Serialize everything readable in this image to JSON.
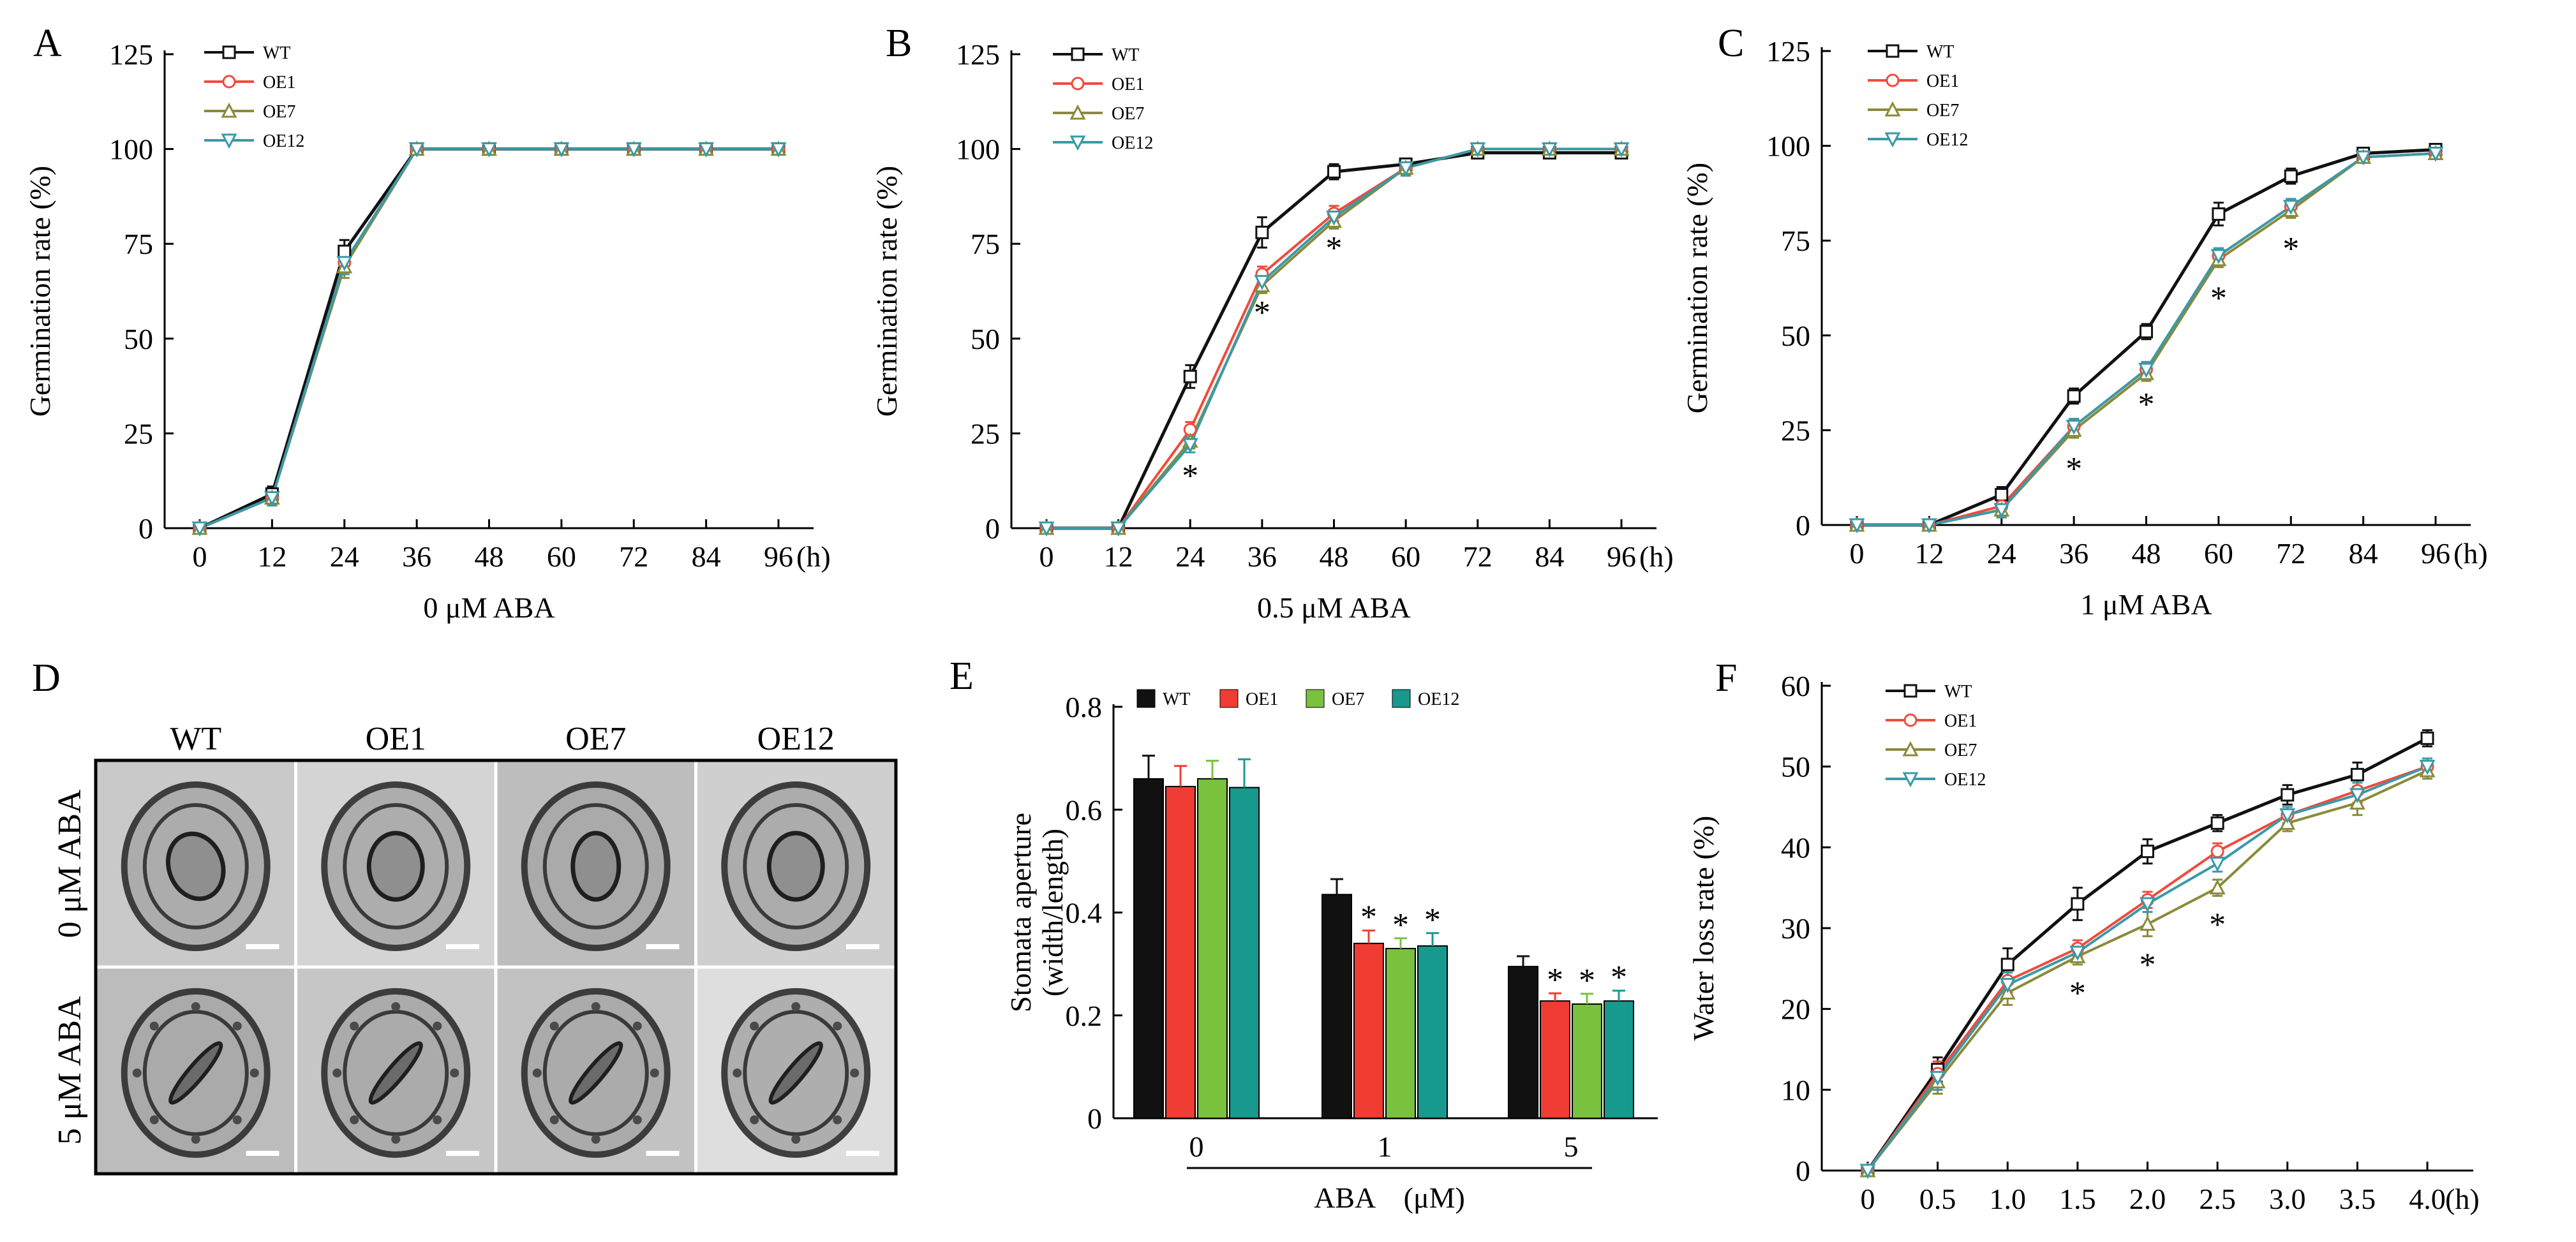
{
  "colors": {
    "WT": "#111111",
    "OE1": "#f24a3c",
    "OE7": "#8a8a3a",
    "OE12": "#3a9aa8",
    "bar_WT": "#111111",
    "bar_OE1": "#f03c32",
    "bar_OE7": "#7ac13e",
    "bar_OE12": "#18998d"
  },
  "figure_d": {
    "panel_letter": "D",
    "columns": [
      "WT",
      "OE1",
      "OE7",
      "OE12"
    ],
    "rows": [
      "0 μM ABA",
      "5 μM ABA"
    ]
  },
  "chart_data": [
    {
      "id": "A",
      "panel_letter": "A",
      "type": "line",
      "title": "",
      "xlabel": "0 μM ABA",
      "ylabel": "Germination rate (%)",
      "x": [
        0,
        12,
        24,
        36,
        48,
        60,
        72,
        84,
        96
      ],
      "xticks": [
        "0",
        "12",
        "24",
        "36",
        "48",
        "60",
        "72",
        "84",
        "96"
      ],
      "x_unit": "(h)",
      "yticks": [
        "0",
        "25",
        "50",
        "75",
        "100",
        "125"
      ],
      "ylim": [
        0,
        125
      ],
      "legend": [
        "WT",
        "OE1",
        "OE7",
        "OE12"
      ],
      "series": [
        {
          "name": "WT",
          "values": [
            0,
            9,
            73,
            100,
            100,
            100,
            100,
            100,
            100
          ],
          "err": [
            0,
            2,
            3,
            0,
            0,
            0,
            0,
            0,
            0
          ]
        },
        {
          "name": "OE1",
          "values": [
            0,
            8,
            70,
            100,
            100,
            100,
            100,
            100,
            100
          ],
          "err": [
            0,
            2,
            3,
            0,
            0,
            0,
            0,
            0,
            0
          ]
        },
        {
          "name": "OE7",
          "values": [
            0,
            8,
            69,
            100,
            100,
            100,
            100,
            100,
            100
          ],
          "err": [
            0,
            2,
            3,
            0,
            0,
            0,
            0,
            0,
            0
          ]
        },
        {
          "name": "OE12",
          "values": [
            0,
            8,
            70,
            100,
            100,
            100,
            100,
            100,
            100
          ],
          "err": [
            0,
            2,
            3,
            0,
            0,
            0,
            0,
            0,
            0
          ]
        }
      ],
      "stars": []
    },
    {
      "id": "B",
      "panel_letter": "B",
      "type": "line",
      "title": "",
      "xlabel": "0.5 μM ABA",
      "ylabel": "Germination rate (%)",
      "x": [
        0,
        12,
        24,
        36,
        48,
        60,
        72,
        84,
        96
      ],
      "xticks": [
        "0",
        "12",
        "24",
        "36",
        "48",
        "60",
        "72",
        "84",
        "96"
      ],
      "x_unit": "(h)",
      "yticks": [
        "0",
        "25",
        "50",
        "75",
        "100",
        "125"
      ],
      "ylim": [
        0,
        125
      ],
      "legend": [
        "WT",
        "OE1",
        "OE7",
        "OE12"
      ],
      "series": [
        {
          "name": "WT",
          "values": [
            0,
            0,
            40,
            78,
            94,
            96,
            99,
            99,
            99
          ],
          "err": [
            0,
            0,
            3,
            4,
            2,
            1,
            1,
            1,
            1
          ]
        },
        {
          "name": "OE1",
          "values": [
            0,
            0,
            26,
            67,
            83,
            95,
            100,
            100,
            100
          ],
          "err": [
            0,
            0,
            2,
            2,
            2,
            2,
            0,
            0,
            0
          ]
        },
        {
          "name": "OE7",
          "values": [
            0,
            0,
            23,
            64,
            81,
            95,
            100,
            100,
            100
          ],
          "err": [
            0,
            0,
            2,
            2,
            2,
            2,
            0,
            0,
            0
          ]
        },
        {
          "name": "OE12",
          "values": [
            0,
            0,
            22,
            65,
            82,
            95,
            100,
            100,
            100
          ],
          "err": [
            0,
            0,
            2,
            2,
            2,
            2,
            0,
            0,
            0
          ]
        }
      ],
      "stars": [
        {
          "x": 24,
          "y": 15,
          "text": "*"
        },
        {
          "x": 36,
          "y": 58,
          "text": "*"
        },
        {
          "x": 48,
          "y": 75,
          "text": "*"
        }
      ]
    },
    {
      "id": "C",
      "panel_letter": "C",
      "type": "line",
      "title": "",
      "xlabel": "1 μM ABA",
      "ylabel": "Germination rate (%)",
      "x": [
        0,
        12,
        24,
        36,
        48,
        60,
        72,
        84,
        96
      ],
      "xticks": [
        "0",
        "12",
        "24",
        "36",
        "48",
        "60",
        "72",
        "84",
        "96"
      ],
      "x_unit": "(h)",
      "yticks": [
        "0",
        "25",
        "50",
        "75",
        "100",
        "125"
      ],
      "ylim": [
        0,
        125
      ],
      "legend": [
        "WT",
        "OE1",
        "OE7",
        "OE12"
      ],
      "series": [
        {
          "name": "WT",
          "values": [
            0,
            0,
            8,
            34,
            51,
            82,
            92,
            98,
            99
          ],
          "err": [
            0,
            0,
            2,
            2,
            2,
            3,
            2,
            1,
            1
          ]
        },
        {
          "name": "OE1",
          "values": [
            0,
            0,
            5,
            26,
            41,
            71,
            84,
            97,
            98
          ],
          "err": [
            0,
            0,
            2,
            2,
            2,
            2,
            2,
            1,
            1
          ]
        },
        {
          "name": "OE7",
          "values": [
            0,
            0,
            4,
            25,
            40,
            70,
            83,
            97,
            98
          ],
          "err": [
            0,
            0,
            2,
            2,
            2,
            2,
            2,
            1,
            1
          ]
        },
        {
          "name": "OE12",
          "values": [
            0,
            0,
            4,
            26,
            41,
            71,
            84,
            97,
            98
          ],
          "err": [
            0,
            0,
            2,
            2,
            2,
            2,
            2,
            1,
            1
          ]
        }
      ],
      "stars": [
        {
          "x": 36,
          "y": 16,
          "text": "*"
        },
        {
          "x": 48,
          "y": 33,
          "text": "*"
        },
        {
          "x": 60,
          "y": 61,
          "text": "*"
        },
        {
          "x": 72,
          "y": 74,
          "text": "*"
        }
      ]
    },
    {
      "id": "E",
      "panel_letter": "E",
      "type": "bar",
      "title": "",
      "xlabel": "ABA　(μM)",
      "ylabel": "Stomata aperture (width/length)",
      "ylabel_line1": "Stomata aperture",
      "ylabel_line2": "(width/length)",
      "categories": [
        "0",
        "1",
        "5"
      ],
      "yticks": [
        "0",
        "0.2",
        "0.4",
        "0.6",
        "0.8"
      ],
      "ylim": [
        0,
        0.8
      ],
      "legend": [
        "WT",
        "OE1",
        "OE7",
        "OE12"
      ],
      "series": [
        {
          "name": "WT",
          "values": [
            0.66,
            0.435,
            0.295
          ],
          "err": [
            0.045,
            0.03,
            0.02
          ]
        },
        {
          "name": "OE1",
          "values": [
            0.645,
            0.34,
            0.228
          ],
          "err": [
            0.04,
            0.025,
            0.015
          ]
        },
        {
          "name": "OE7",
          "values": [
            0.66,
            0.33,
            0.222
          ],
          "err": [
            0.035,
            0.02,
            0.02
          ]
        },
        {
          "name": "OE12",
          "values": [
            0.643,
            0.335,
            0.228
          ],
          "err": [
            0.055,
            0.025,
            0.02
          ]
        }
      ],
      "stars": [
        {
          "group": 1,
          "series": 1,
          "text": "*"
        },
        {
          "group": 1,
          "series": 2,
          "text": "*"
        },
        {
          "group": 1,
          "series": 3,
          "text": "*"
        },
        {
          "group": 2,
          "series": 1,
          "text": "*"
        },
        {
          "group": 2,
          "series": 2,
          "text": "*"
        },
        {
          "group": 2,
          "series": 3,
          "text": "*"
        }
      ]
    },
    {
      "id": "F",
      "panel_letter": "F",
      "type": "line",
      "title": "",
      "xlabel": "",
      "ylabel": "Water loss rate (%)",
      "x": [
        0,
        0.5,
        1.0,
        1.5,
        2.0,
        2.5,
        3.0,
        3.5,
        4.0
      ],
      "xticks": [
        "0",
        "0.5",
        "1.0",
        "1.5",
        "2.0",
        "2.5",
        "3.0",
        "3.5",
        "4.0"
      ],
      "x_unit": "(h)",
      "yticks": [
        "0",
        "10",
        "20",
        "30",
        "40",
        "50",
        "60"
      ],
      "ylim": [
        0,
        60
      ],
      "legend": [
        "WT",
        "OE1",
        "OE7",
        "OE12"
      ],
      "series": [
        {
          "name": "WT",
          "values": [
            0,
            12.5,
            25.5,
            33,
            39.5,
            43,
            46.5,
            49,
            53.5
          ],
          "err": [
            0,
            1.5,
            2,
            2,
            1.5,
            1,
            1.2,
            1.5,
            1
          ]
        },
        {
          "name": "OE1",
          "values": [
            0,
            12,
            23.5,
            27.5,
            33.5,
            39.5,
            44,
            47,
            50
          ],
          "err": [
            0,
            1.5,
            1.5,
            1,
            1,
            1,
            1,
            1.5,
            1
          ]
        },
        {
          "name": "OE7",
          "values": [
            0,
            11,
            22,
            26.5,
            30.5,
            35,
            43,
            45.5,
            49.5
          ],
          "err": [
            0,
            1.5,
            1.5,
            1,
            1.5,
            1,
            1,
            1.5,
            1
          ]
        },
        {
          "name": "OE12",
          "values": [
            0,
            11.5,
            23,
            27,
            33,
            38,
            44,
            46.5,
            50
          ],
          "err": [
            0,
            1.5,
            1.5,
            1,
            1,
            1,
            1,
            1.5,
            1
          ]
        }
      ],
      "stars": [
        {
          "x": 1.5,
          "y": 22.5,
          "text": "*"
        },
        {
          "x": 2.0,
          "y": 26,
          "text": "*"
        },
        {
          "x": 2.5,
          "y": 31,
          "text": "*"
        }
      ]
    }
  ]
}
